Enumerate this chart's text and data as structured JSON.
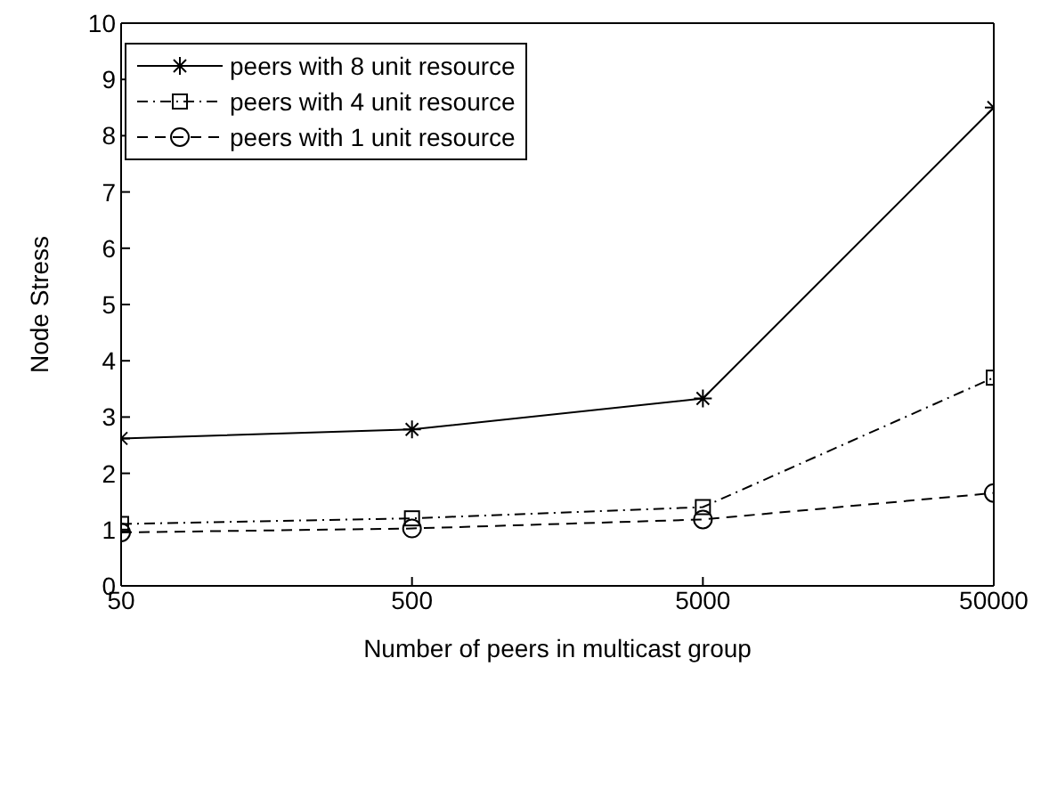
{
  "chart_data": {
    "type": "line",
    "xlabel": "Number of peers in multicast group",
    "ylabel": "Node Stress",
    "x": [
      50,
      500,
      5000,
      50000
    ],
    "log": "x",
    "xlim": [
      50,
      50000
    ],
    "xticks": [
      50,
      500,
      5000,
      50000
    ],
    "ylim": [
      0,
      10
    ],
    "yticks": [
      0,
      1,
      2,
      3,
      4,
      5,
      6,
      7,
      8,
      9,
      10
    ],
    "grid": false,
    "legend": "top left",
    "series": [
      {
        "name": "peers with 8 unit resource",
        "color": "#000000",
        "values": [
          2.62,
          2.78,
          3.33,
          8.5
        ],
        "marker": "cross",
        "line_style": "solid"
      },
      {
        "name": "peers with 4 unit resource",
        "color": "#000000",
        "values": [
          1.1,
          1.2,
          1.4,
          3.7
        ],
        "marker": "square",
        "line_style": "dashdot"
      },
      {
        "name": "peers with 1 unit resource",
        "color": "#000000",
        "values": [
          0.95,
          1.02,
          1.18,
          1.65
        ],
        "marker": "circle",
        "line_style": "dashed"
      }
    ]
  }
}
